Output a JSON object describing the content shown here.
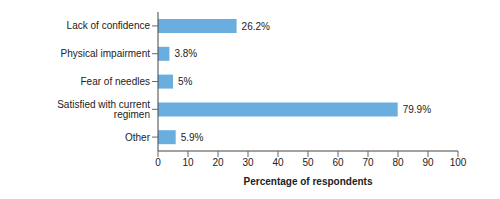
{
  "chart_data": {
    "type": "bar",
    "orientation": "horizontal",
    "x_label": "Percentage of respondents",
    "categories": [
      "Lack of confidence",
      "Physical impairment",
      "Fear of needles",
      "Satisfied with current regimen",
      "Other"
    ],
    "values": [
      26.2,
      3.8,
      5,
      79.9,
      5.9
    ],
    "value_labels": [
      "26.2%",
      "3.8%",
      "5%",
      "79.9%",
      "5.9%"
    ],
    "data_labels": true,
    "color": "#6aaee0",
    "xlim": [
      0,
      100
    ],
    "xticks": [
      0,
      10,
      20,
      30,
      40,
      50,
      60,
      70,
      80,
      90,
      100
    ],
    "grid": false
  }
}
